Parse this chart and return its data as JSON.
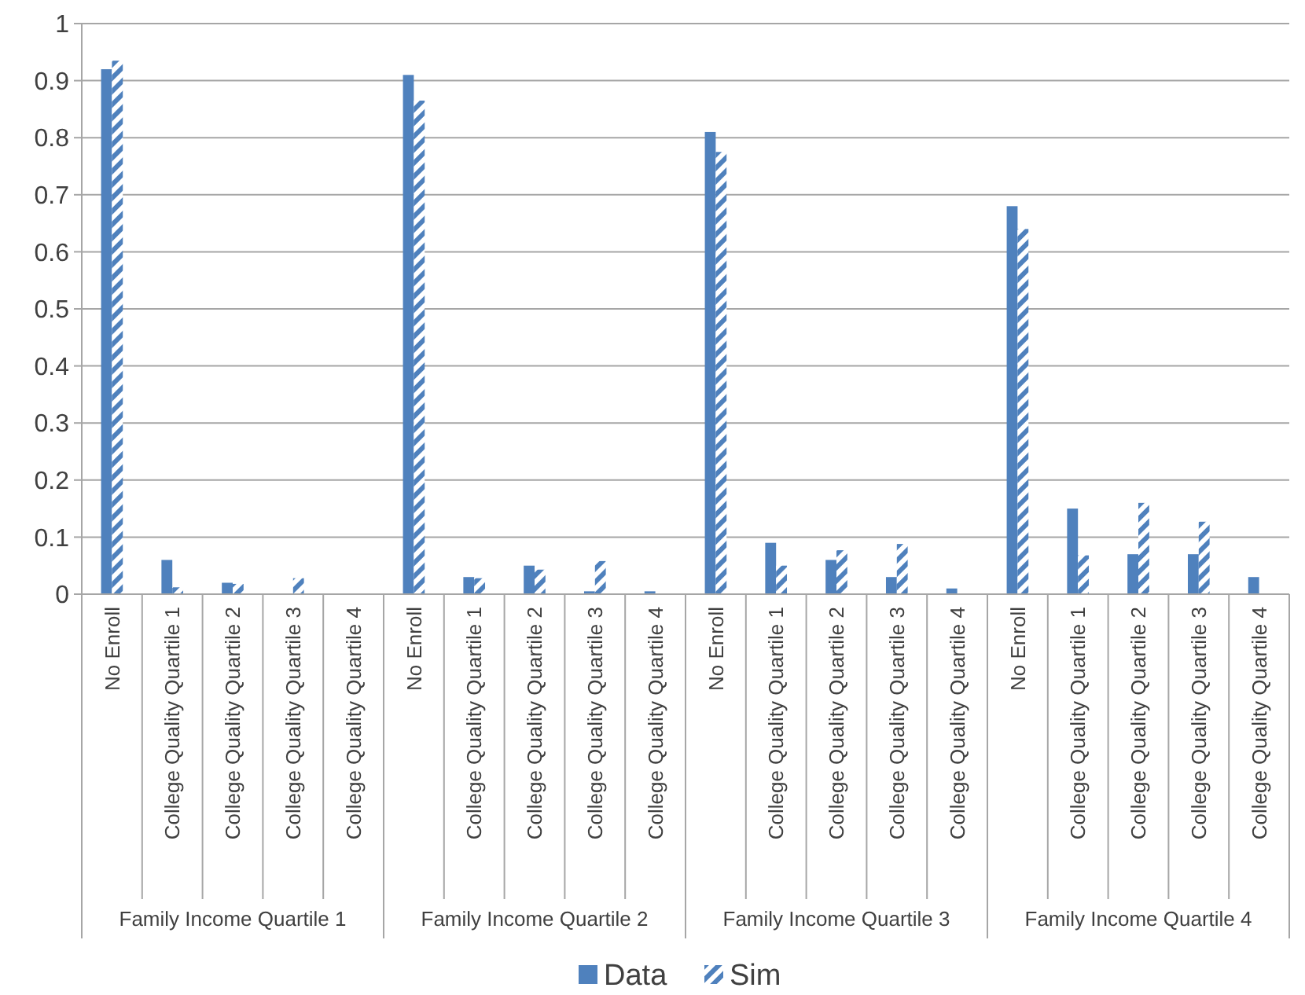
{
  "chart_data": {
    "type": "bar",
    "categories": [
      "No Enroll",
      "College Quality Quartile 1",
      "College Quality Quartile 2",
      "College Quality Quartile 3",
      "College Quality Quartile 4",
      "No Enroll",
      "College Quality Quartile 1",
      "College Quality Quartile 2",
      "College Quality Quartile 3",
      "College Quality Quartile 4",
      "No Enroll",
      "College Quality Quartile 1",
      "College Quality Quartile 2",
      "College Quality Quartile 3",
      "College Quality Quartile 4",
      "No Enroll",
      "College Quality Quartile 1",
      "College Quality Quartile 2",
      "College Quality Quartile 3",
      "College Quality Quartile 4"
    ],
    "series": [
      {
        "name": "Data",
        "color": "#4f81bd",
        "values": [
          0.92,
          0.06,
          0.02,
          0,
          0,
          0.91,
          0.03,
          0.05,
          0.005,
          0.005,
          0.81,
          0.09,
          0.06,
          0.03,
          0.01,
          0.68,
          0.15,
          0.07,
          0.07,
          0.03
        ]
      },
      {
        "name": "Sim",
        "color": "#4f81bd",
        "values": [
          0.935,
          0.012,
          0.018,
          0.028,
          0,
          0.865,
          0.028,
          0.043,
          0.058,
          0,
          0.775,
          0.05,
          0.077,
          0.088,
          0,
          0.64,
          0.068,
          0.16,
          0.127,
          0
        ]
      }
    ],
    "annotations": [
      "Family Income Quartile 1",
      "Family Income Quartile 2",
      "Family Income Quartile 3",
      "Family Income Quartile 4"
    ],
    "ylim": [
      0,
      1
    ],
    "yticks": [
      0,
      0.1,
      0.2,
      0.3,
      0.4,
      0.5,
      0.6,
      0.7,
      0.8,
      0.9,
      1
    ],
    "grid": "y",
    "legend": "bottom"
  }
}
